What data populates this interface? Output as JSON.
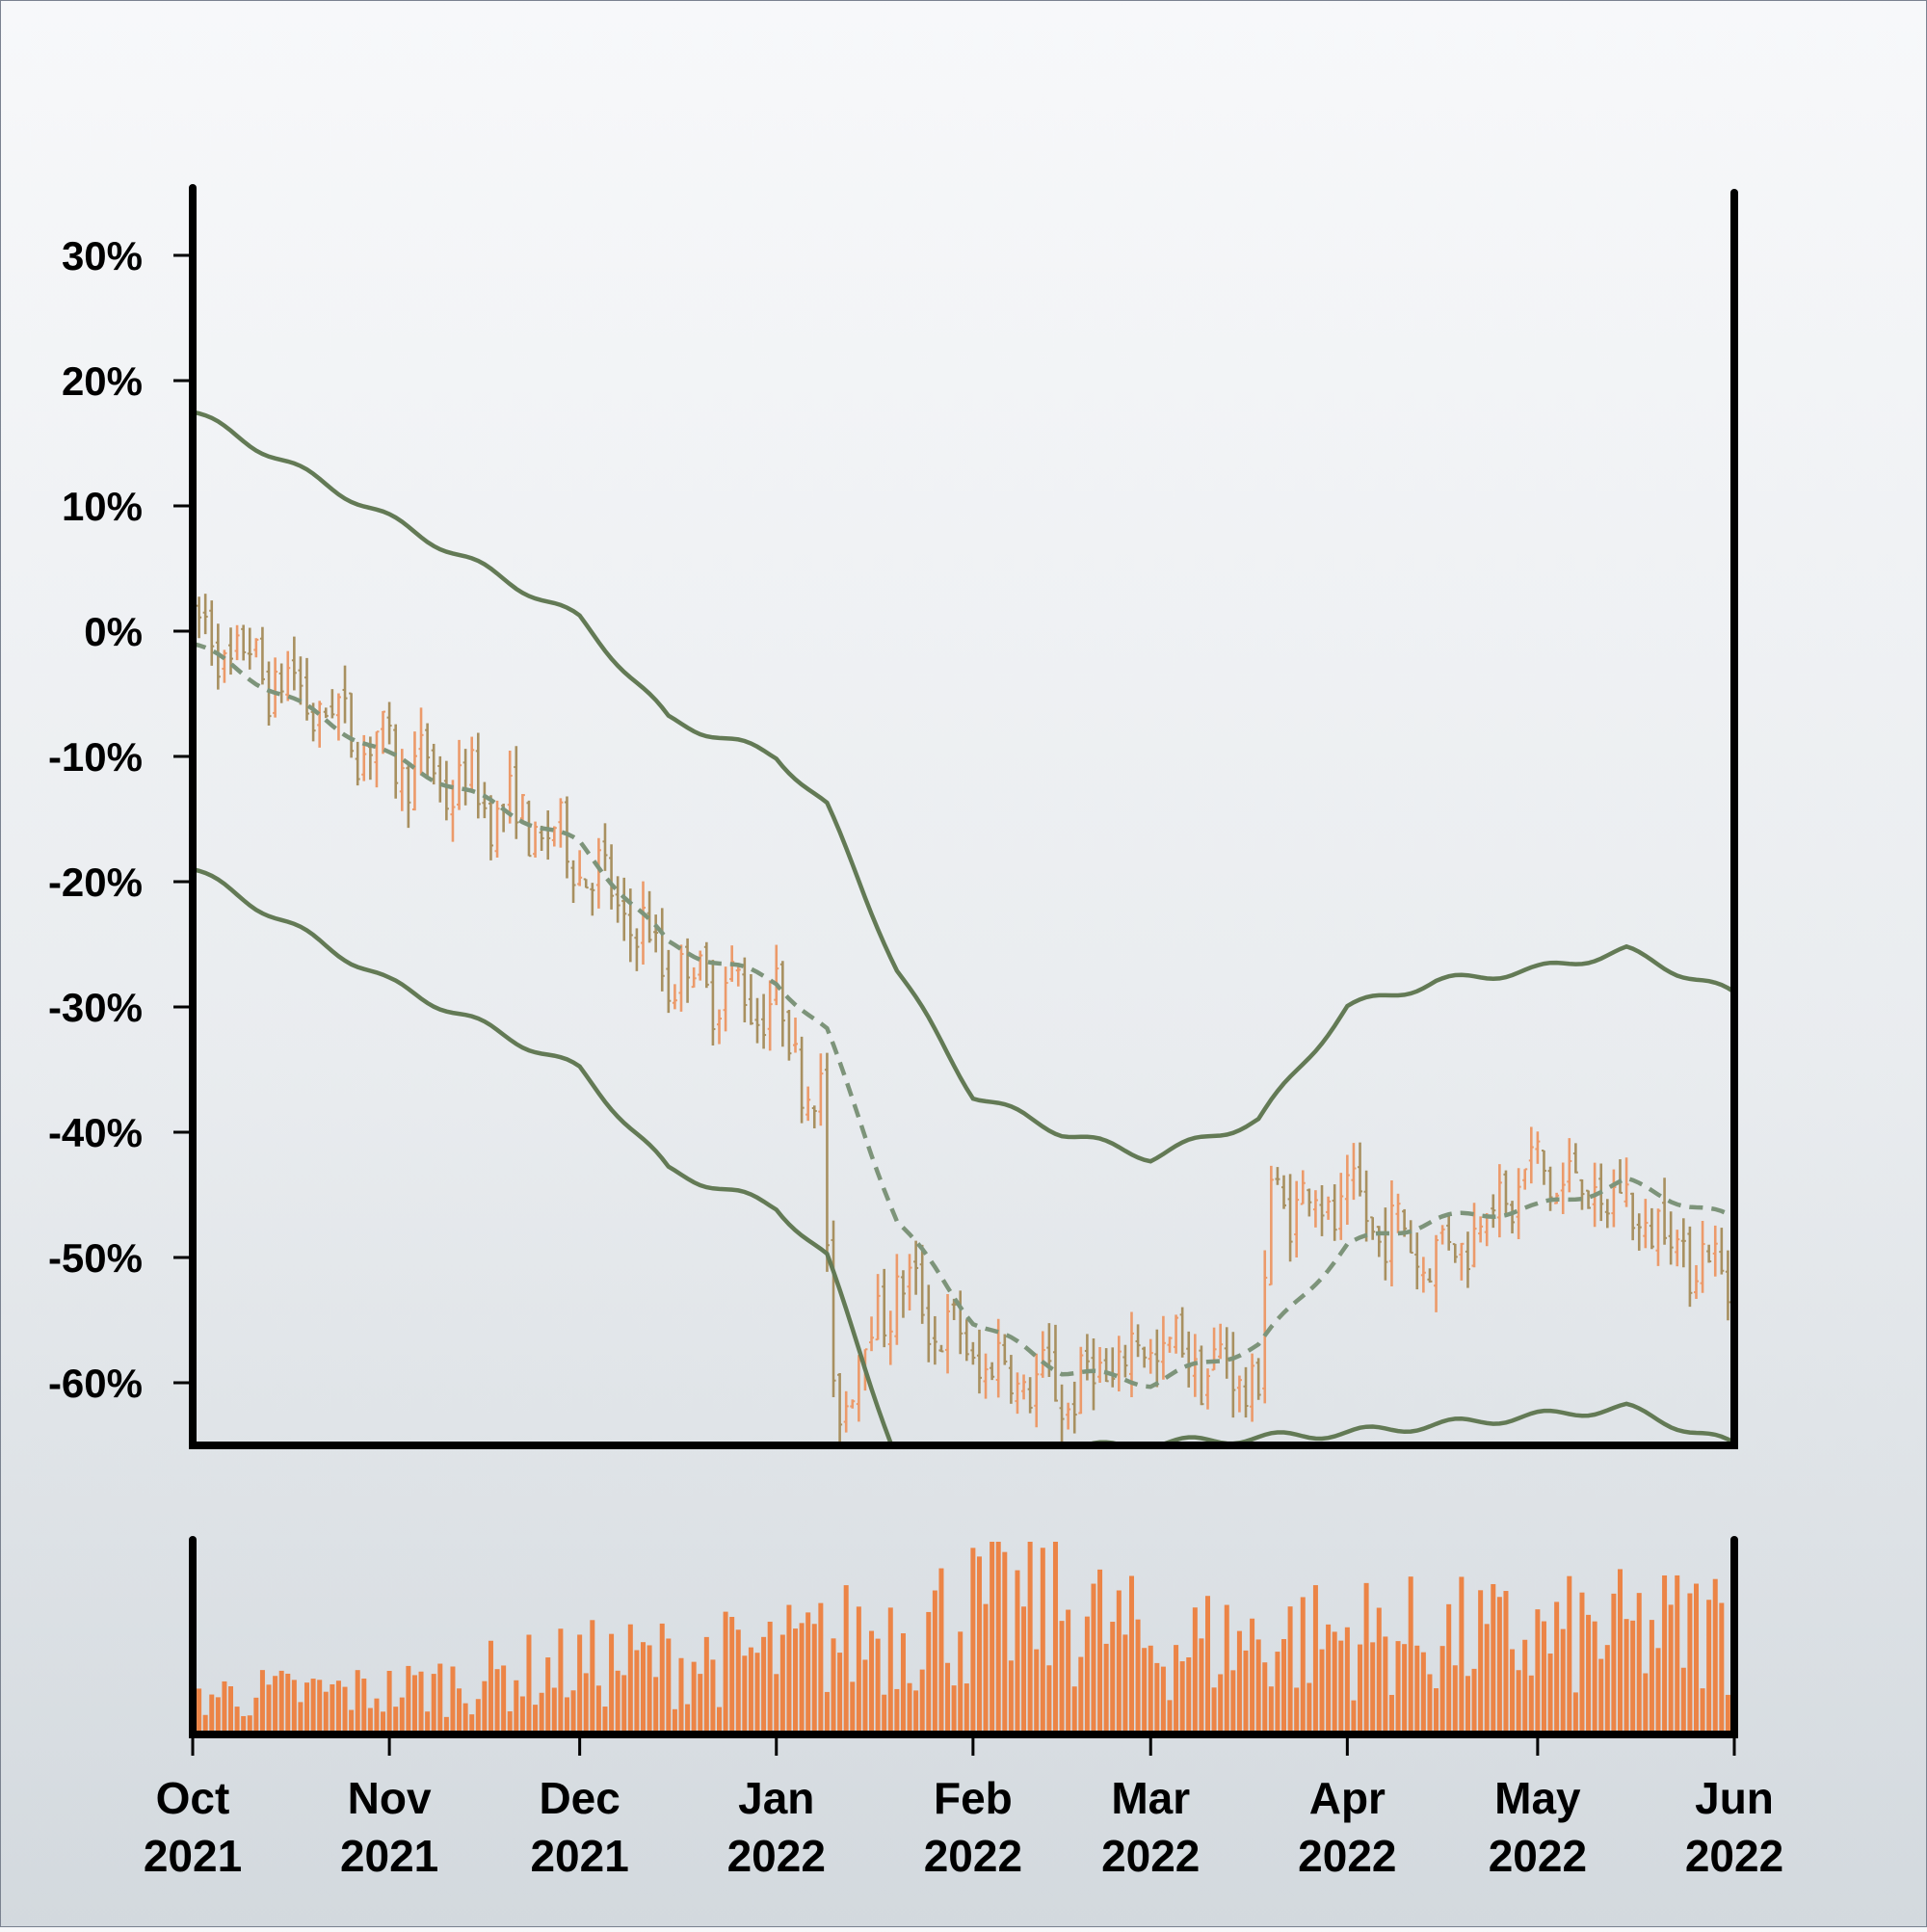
{
  "chart_data": [
    {
      "type": "ohlc",
      "panel": "price",
      "title": "",
      "xlabel": "",
      "ylabel": "",
      "y_unit": "%",
      "ylim": [
        -65,
        35
      ],
      "xlim": [
        "2021-10-01",
        "2022-06-01"
      ],
      "yticks": [
        30,
        20,
        10,
        0,
        -10,
        -20,
        -30,
        -40,
        -50,
        -60
      ],
      "ytick_labels": [
        "30%",
        "20%",
        "10%",
        "0%",
        "-10%",
        "-20%",
        "-30%",
        "-40%",
        "-50%",
        "-60%"
      ],
      "grid": false,
      "legend": "none",
      "up_color": "#ec9a6a",
      "down_color": "#a89060",
      "band_color": "#637a55",
      "band_description": "Bollinger-style bands (upper, middle dashed, lower)",
      "series_points_percent": [
        {
          "date": "2021-10-01",
          "value": 0
        },
        {
          "date": "2021-10-15",
          "value": -4
        },
        {
          "date": "2021-11-01",
          "value": -10
        },
        {
          "date": "2021-11-15",
          "value": -13
        },
        {
          "date": "2021-12-01",
          "value": -18
        },
        {
          "date": "2021-12-15",
          "value": -27
        },
        {
          "date": "2022-01-01",
          "value": -30
        },
        {
          "date": "2022-01-08",
          "value": -38
        },
        {
          "date": "2022-01-10",
          "value": -62
        },
        {
          "date": "2022-01-20",
          "value": -52
        },
        {
          "date": "2022-02-01",
          "value": -58
        },
        {
          "date": "2022-02-15",
          "value": -61
        },
        {
          "date": "2022-03-01",
          "value": -57
        },
        {
          "date": "2022-03-18",
          "value": -60
        },
        {
          "date": "2022-03-20",
          "value": -45
        },
        {
          "date": "2022-04-01",
          "value": -46
        },
        {
          "date": "2022-04-15",
          "value": -50
        },
        {
          "date": "2022-05-01",
          "value": -43
        },
        {
          "date": "2022-05-15",
          "value": -46
        },
        {
          "date": "2022-06-01",
          "value": -52
        }
      ],
      "middle_band_percent": [
        {
          "date": "2021-10-01",
          "value": -1
        },
        {
          "date": "2021-11-01",
          "value": -10
        },
        {
          "date": "2021-12-01",
          "value": -17
        },
        {
          "date": "2021-12-15",
          "value": -25
        },
        {
          "date": "2022-01-01",
          "value": -28
        },
        {
          "date": "2022-01-09",
          "value": -32
        },
        {
          "date": "2022-01-20",
          "value": -47
        },
        {
          "date": "2022-02-01",
          "value": -55
        },
        {
          "date": "2022-02-15",
          "value": -59
        },
        {
          "date": "2022-03-01",
          "value": -60
        },
        {
          "date": "2022-03-18",
          "value": -57
        },
        {
          "date": "2022-04-01",
          "value": -49
        },
        {
          "date": "2022-04-15",
          "value": -47
        },
        {
          "date": "2022-05-01",
          "value": -46
        },
        {
          "date": "2022-05-15",
          "value": -44
        },
        {
          "date": "2022-06-01",
          "value": -47
        }
      ],
      "upper_band_percent": [
        {
          "date": "2021-10-01",
          "value": 17.5
        },
        {
          "date": "2021-11-01",
          "value": 9
        },
        {
          "date": "2021-12-01",
          "value": 1
        },
        {
          "date": "2021-12-15",
          "value": -7
        },
        {
          "date": "2022-01-01",
          "value": -10
        },
        {
          "date": "2022-01-09",
          "value": -14
        },
        {
          "date": "2022-01-20",
          "value": -27
        },
        {
          "date": "2022-02-01",
          "value": -37
        },
        {
          "date": "2022-02-15",
          "value": -40
        },
        {
          "date": "2022-03-01",
          "value": -42
        },
        {
          "date": "2022-03-18",
          "value": -39
        },
        {
          "date": "2022-04-01",
          "value": -30
        },
        {
          "date": "2022-04-15",
          "value": -28
        },
        {
          "date": "2022-05-01",
          "value": -27
        },
        {
          "date": "2022-05-15",
          "value": -25.5
        },
        {
          "date": "2022-06-01",
          "value": -29
        }
      ],
      "lower_band_percent": [
        {
          "date": "2021-10-01",
          "value": -19
        },
        {
          "date": "2021-11-01",
          "value": -28
        },
        {
          "date": "2021-12-01",
          "value": -35
        },
        {
          "date": "2021-12-15",
          "value": -43
        },
        {
          "date": "2022-01-01",
          "value": -46
        },
        {
          "date": "2022-01-09",
          "value": -50
        },
        {
          "date": "2022-01-20",
          "value": -66
        },
        {
          "date": "2022-04-01",
          "value": -64
        },
        {
          "date": "2022-05-15",
          "value": -62
        },
        {
          "date": "2022-06-01",
          "value": -65
        }
      ]
    },
    {
      "type": "bar",
      "panel": "volume",
      "title": "",
      "ylabel": "",
      "color": "#ec8446",
      "values_description": "daily volume, relative (0 to 1 of panel max)",
      "volume_profile": [
        {
          "date": "2021-10-01",
          "value": 0.2
        },
        {
          "date": "2021-11-01",
          "value": 0.22
        },
        {
          "date": "2021-12-01",
          "value": 0.35
        },
        {
          "date": "2022-01-01",
          "value": 0.4
        },
        {
          "date": "2022-02-01",
          "value": 0.62
        },
        {
          "date": "2022-02-15",
          "value": 0.65
        },
        {
          "date": "2022-03-01",
          "value": 0.45
        },
        {
          "date": "2022-04-01",
          "value": 0.5
        },
        {
          "date": "2022-05-01",
          "value": 0.48
        },
        {
          "date": "2022-06-01",
          "value": 0.55
        }
      ]
    }
  ],
  "x_axis": {
    "ticks": [
      "2021-10-01",
      "2021-11-01",
      "2021-12-01",
      "2022-01-01",
      "2022-02-01",
      "2022-03-01",
      "2022-04-01",
      "2022-05-01",
      "2022-06-01"
    ],
    "labels": [
      [
        "Oct",
        "2021"
      ],
      [
        "Nov",
        "2021"
      ],
      [
        "Dec",
        "2021"
      ],
      [
        "Jan",
        "2022"
      ],
      [
        "Feb",
        "2022"
      ],
      [
        "Mar",
        "2022"
      ],
      [
        "Apr",
        "2022"
      ],
      [
        "May",
        "2022"
      ],
      [
        "Jun",
        "2022"
      ]
    ]
  }
}
